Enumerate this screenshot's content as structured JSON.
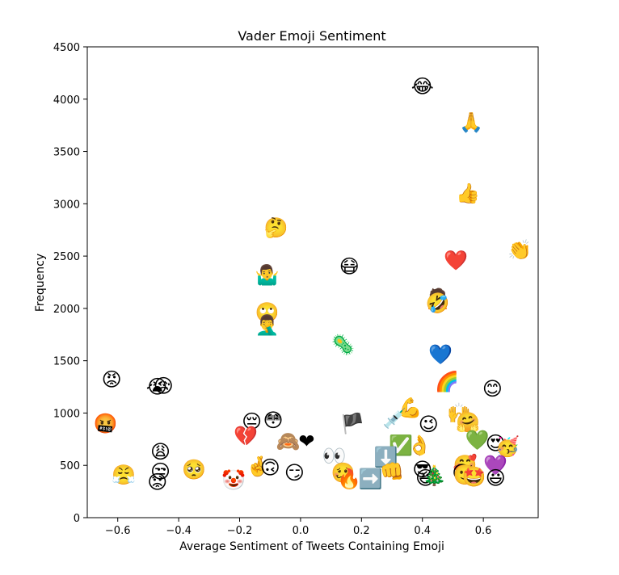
{
  "chart_data": {
    "type": "scatter",
    "title": "Vader Emoji Sentiment",
    "xlabel": "Average Sentiment of Tweets Containing Emoji",
    "ylabel": "Frequency",
    "xlim": [
      -0.7,
      0.78
    ],
    "ylim": [
      0,
      4500
    ],
    "xticks": [
      -0.6,
      -0.4,
      -0.2,
      0.0,
      0.2,
      0.4,
      0.6
    ],
    "xtick_labels": [
      "−0.6",
      "−0.4",
      "−0.2",
      "0.0",
      "0.2",
      "0.4",
      "0.6"
    ],
    "yticks": [
      0,
      500,
      1000,
      1500,
      2000,
      2500,
      3000,
      3500,
      4000,
      4500
    ],
    "ytick_labels": [
      "0",
      "500",
      "1000",
      "1500",
      "2000",
      "2500",
      "3000",
      "3500",
      "4000",
      "4500"
    ],
    "grid": false,
    "legend": "none",
    "points": [
      {
        "emoji": "😂",
        "x": 0.4,
        "y": 4120
      },
      {
        "emoji": "🙏",
        "x": 0.56,
        "y": 3780
      },
      {
        "emoji": "👍",
        "x": 0.55,
        "y": 3100
      },
      {
        "emoji": "🤔",
        "x": -0.08,
        "y": 2770
      },
      {
        "emoji": "👏",
        "x": 0.72,
        "y": 2560
      },
      {
        "emoji": "❤️",
        "x": 0.51,
        "y": 2460
      },
      {
        "emoji": "😷",
        "x": 0.16,
        "y": 2400
      },
      {
        "emoji": "🤷‍♂️",
        "x": -0.11,
        "y": 2320
      },
      {
        "emoji": "🤦",
        "x": 0.45,
        "y": 2090
      },
      {
        "emoji": "🤣",
        "x": 0.45,
        "y": 2050
      },
      {
        "emoji": "🙄",
        "x": -0.11,
        "y": 1960
      },
      {
        "emoji": "🤦‍♂️",
        "x": -0.11,
        "y": 1840
      },
      {
        "emoji": "🦠",
        "x": 0.14,
        "y": 1650
      },
      {
        "emoji": "💙",
        "x": 0.46,
        "y": 1560
      },
      {
        "emoji": "😡",
        "x": -0.62,
        "y": 1320
      },
      {
        "emoji": "🌈",
        "x": 0.48,
        "y": 1300
      },
      {
        "emoji": "😥",
        "x": -0.45,
        "y": 1260
      },
      {
        "emoji": "😭",
        "x": -0.47,
        "y": 1250
      },
      {
        "emoji": "😊",
        "x": 0.63,
        "y": 1230
      },
      {
        "emoji": "💪",
        "x": 0.36,
        "y": 1050
      },
      {
        "emoji": "🙌",
        "x": 0.52,
        "y": 1000
      },
      {
        "emoji": "🤬",
        "x": -0.64,
        "y": 900
      },
      {
        "emoji": "😔",
        "x": -0.16,
        "y": 920
      },
      {
        "emoji": "😳",
        "x": -0.09,
        "y": 930
      },
      {
        "emoji": "🏴",
        "x": 0.17,
        "y": 900
      },
      {
        "emoji": "💉",
        "x": 0.31,
        "y": 950
      },
      {
        "emoji": "😉",
        "x": 0.42,
        "y": 890
      },
      {
        "emoji": "🤗",
        "x": 0.55,
        "y": 910
      },
      {
        "emoji": "💔",
        "x": -0.18,
        "y": 780
      },
      {
        "emoji": "🙈",
        "x": -0.04,
        "y": 730
      },
      {
        "emoji": "❤",
        "x": 0.02,
        "y": 730
      },
      {
        "emoji": "💚",
        "x": 0.58,
        "y": 740
      },
      {
        "emoji": "😍",
        "x": 0.64,
        "y": 710
      },
      {
        "emoji": "🥳",
        "x": 0.68,
        "y": 680
      },
      {
        "emoji": "✅",
        "x": 0.33,
        "y": 690
      },
      {
        "emoji": "👌",
        "x": 0.39,
        "y": 690
      },
      {
        "emoji": "😩",
        "x": -0.46,
        "y": 630
      },
      {
        "emoji": "👀",
        "x": 0.11,
        "y": 590
      },
      {
        "emoji": "⬇️",
        "x": 0.28,
        "y": 580
      },
      {
        "emoji": "😤",
        "x": -0.58,
        "y": 410
      },
      {
        "emoji": "😒",
        "x": -0.46,
        "y": 440
      },
      {
        "emoji": "🥺",
        "x": -0.35,
        "y": 460
      },
      {
        "emoji": "🤞",
        "x": -0.14,
        "y": 490
      },
      {
        "emoji": "🙃",
        "x": -0.1,
        "y": 480
      },
      {
        "emoji": "😏",
        "x": -0.02,
        "y": 430
      },
      {
        "emoji": "🤡",
        "x": -0.22,
        "y": 360
      },
      {
        "emoji": "😟",
        "x": -0.47,
        "y": 340
      },
      {
        "emoji": "🥴",
        "x": 0.14,
        "y": 430
      },
      {
        "emoji": "🔥",
        "x": 0.16,
        "y": 370
      },
      {
        "emoji": "➡️",
        "x": 0.23,
        "y": 370
      },
      {
        "emoji": "👊",
        "x": 0.3,
        "y": 440
      },
      {
        "emoji": "😎",
        "x": 0.4,
        "y": 460
      },
      {
        "emoji": "😆",
        "x": 0.41,
        "y": 380
      },
      {
        "emoji": "🎄",
        "x": 0.44,
        "y": 400
      },
      {
        "emoji": "🥰",
        "x": 0.54,
        "y": 500
      },
      {
        "emoji": "😄",
        "x": 0.53,
        "y": 430
      },
      {
        "emoji": "🙂",
        "x": 0.54,
        "y": 410
      },
      {
        "emoji": "🤩",
        "x": 0.57,
        "y": 390
      },
      {
        "emoji": "💜",
        "x": 0.64,
        "y": 500
      },
      {
        "emoji": "😃",
        "x": 0.64,
        "y": 380
      }
    ]
  }
}
